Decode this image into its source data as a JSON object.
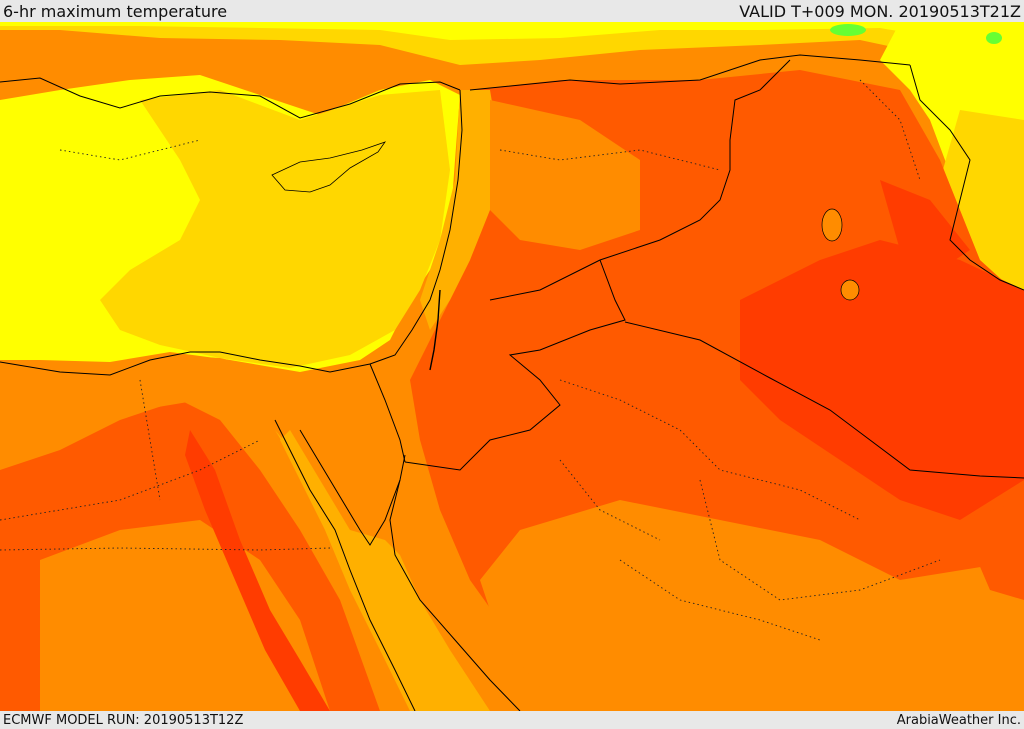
{
  "header": {
    "title": "6-hr maximum temperature",
    "valid": "VALID T+009 MON. 20190513T21Z"
  },
  "footer": {
    "model_run": "ECMWF MODEL RUN: 20190513T12Z",
    "credit": "ArabiaWeather Inc."
  },
  "palette": {
    "yellow": "#ffff00",
    "gold": "#ffd700",
    "amber": "#ffb000",
    "orange": "#ff8c00",
    "deep_orange": "#ff5a00",
    "red_orange": "#ff3c00",
    "green": "#66ff33"
  }
}
